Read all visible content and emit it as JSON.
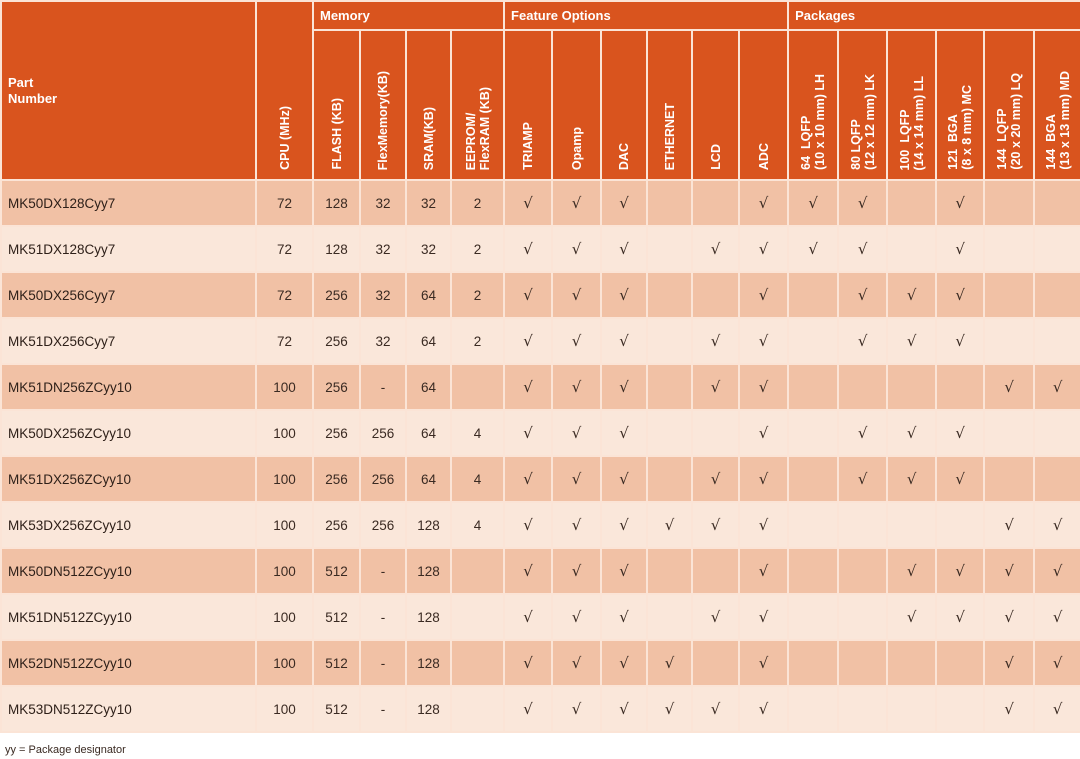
{
  "table": {
    "part_number_label": "Part\nNumber",
    "cpu_label": "CPU (MHz)",
    "groups": {
      "memory": "Memory",
      "features": "Feature Options",
      "packages": "Packages"
    },
    "memory_cols": [
      "FLASH (KB)",
      "FlexMemory(KB)",
      "SRAM(KB)",
      "EEPROM/\nFlexRAM (KB)"
    ],
    "feature_cols": [
      "TRIAMP",
      "Opamp",
      "DAC",
      "ETHERNET",
      "LCD",
      "ADC"
    ],
    "package_cols": [
      "64  LQFP\n(10 x 10 mm) LH",
      "80 LQFP\n(12 x 12 mm) LK",
      "100  LQFP\n(14 x 14 mm) LL",
      "121  BGA\n(8 x 8 mm) MC",
      "144  LQFP\n(20 x 20 mm) LQ",
      "144  BGA\n(13 x 13 mm) MD"
    ],
    "check_symbol": "√",
    "rows": [
      {
        "part": "MK50DX128Cyy7",
        "cpu": "72",
        "flash": "128",
        "flexmem": "32",
        "sram": "32",
        "eeprom": "2",
        "f": [
          1,
          1,
          1,
          0,
          0,
          1
        ],
        "p": [
          1,
          1,
          0,
          1,
          0,
          0
        ]
      },
      {
        "part": "MK51DX128Cyy7",
        "cpu": "72",
        "flash": "128",
        "flexmem": "32",
        "sram": "32",
        "eeprom": "2",
        "f": [
          1,
          1,
          1,
          0,
          1,
          1
        ],
        "p": [
          1,
          1,
          0,
          1,
          0,
          0
        ]
      },
      {
        "part": "MK50DX256Cyy7",
        "cpu": "72",
        "flash": "256",
        "flexmem": "32",
        "sram": "64",
        "eeprom": "2",
        "f": [
          1,
          1,
          1,
          0,
          0,
          1
        ],
        "p": [
          0,
          1,
          1,
          1,
          0,
          0
        ]
      },
      {
        "part": "MK51DX256Cyy7",
        "cpu": "72",
        "flash": "256",
        "flexmem": "32",
        "sram": "64",
        "eeprom": "2",
        "f": [
          1,
          1,
          1,
          0,
          1,
          1
        ],
        "p": [
          0,
          1,
          1,
          1,
          0,
          0
        ]
      },
      {
        "part": "MK51DN256ZCyy10",
        "cpu": "100",
        "flash": "256",
        "flexmem": "-",
        "sram": "64",
        "eeprom": "",
        "f": [
          1,
          1,
          1,
          0,
          1,
          1
        ],
        "p": [
          0,
          0,
          0,
          0,
          1,
          1
        ]
      },
      {
        "part": "MK50DX256ZCyy10",
        "cpu": "100",
        "flash": "256",
        "flexmem": "256",
        "sram": "64",
        "eeprom": "4",
        "f": [
          1,
          1,
          1,
          0,
          0,
          1
        ],
        "p": [
          0,
          1,
          1,
          1,
          0,
          0
        ]
      },
      {
        "part": "MK51DX256ZCyy10",
        "cpu": "100",
        "flash": "256",
        "flexmem": "256",
        "sram": "64",
        "eeprom": "4",
        "f": [
          1,
          1,
          1,
          0,
          1,
          1
        ],
        "p": [
          0,
          1,
          1,
          1,
          0,
          0
        ]
      },
      {
        "part": "MK53DX256ZCyy10",
        "cpu": "100",
        "flash": "256",
        "flexmem": "256",
        "sram": "128",
        "eeprom": "4",
        "f": [
          1,
          1,
          1,
          1,
          1,
          1
        ],
        "p": [
          0,
          0,
          0,
          0,
          1,
          1
        ]
      },
      {
        "part": "MK50DN512ZCyy10",
        "cpu": "100",
        "flash": "512",
        "flexmem": "-",
        "sram": "128",
        "eeprom": "",
        "f": [
          1,
          1,
          1,
          0,
          0,
          1
        ],
        "p": [
          0,
          0,
          1,
          1,
          1,
          1
        ]
      },
      {
        "part": "MK51DN512ZCyy10",
        "cpu": "100",
        "flash": "512",
        "flexmem": "-",
        "sram": "128",
        "eeprom": "",
        "f": [
          1,
          1,
          1,
          0,
          1,
          1
        ],
        "p": [
          0,
          0,
          1,
          1,
          1,
          1
        ]
      },
      {
        "part": "MK52DN512ZCyy10",
        "cpu": "100",
        "flash": "512",
        "flexmem": "-",
        "sram": "128",
        "eeprom": "",
        "f": [
          1,
          1,
          1,
          1,
          0,
          1
        ],
        "p": [
          0,
          0,
          0,
          0,
          1,
          1
        ]
      },
      {
        "part": "MK53DN512ZCyy10",
        "cpu": "100",
        "flash": "512",
        "flexmem": "-",
        "sram": "128",
        "eeprom": "",
        "f": [
          1,
          1,
          1,
          1,
          1,
          1
        ],
        "p": [
          0,
          0,
          0,
          0,
          1,
          1
        ]
      }
    ]
  },
  "footnote": "yy = Package designator",
  "colors": {
    "header_bg": "#d9541e",
    "row_odd_bg": "#f1c1a5",
    "row_even_bg": "#fae7da",
    "grid_line": "#fbe4d6"
  }
}
